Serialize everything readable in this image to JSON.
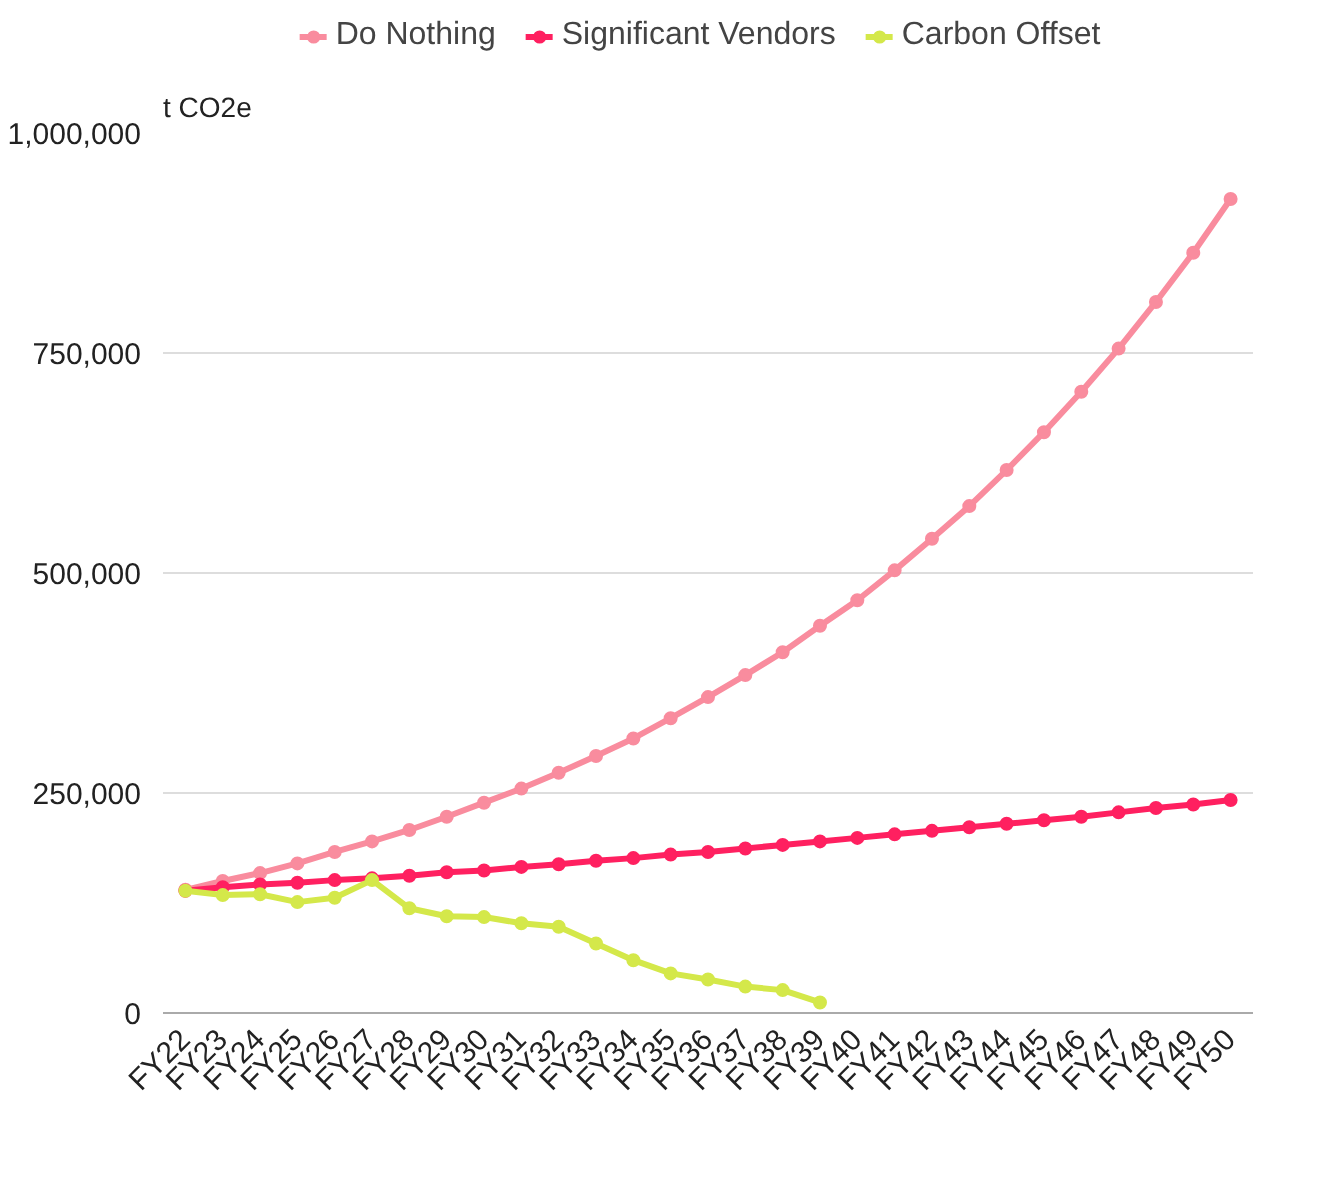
{
  "chart_data": {
    "type": "line",
    "ylabel": "t CO2e",
    "categories": [
      "FY22",
      "FY23",
      "FY24",
      "FY25",
      "FY26",
      "FY27",
      "FY28",
      "FY29",
      "FY30",
      "FY31",
      "FY32",
      "FY33",
      "FY34",
      "FY35",
      "FY36",
      "FY37",
      "FY38",
      "FY39",
      "FY40",
      "FY41",
      "FY42",
      "FY43",
      "FY44",
      "FY45",
      "FY46",
      "FY47",
      "FY48",
      "FY49",
      "FY50"
    ],
    "series": [
      {
        "name": "Do Nothing",
        "color": "#f98c9e",
        "values": [
          140000,
          150000,
          159000,
          170000,
          183000,
          195000,
          208000,
          223000,
          239000,
          255000,
          273000,
          292000,
          312000,
          335000,
          359000,
          384000,
          410000,
          440000,
          469000,
          503000,
          539000,
          576000,
          617000,
          660000,
          706000,
          755000,
          808000,
          864000,
          925000
        ]
      },
      {
        "name": "Significant Vendors",
        "color": "#ff2060",
        "values": [
          139000,
          143000,
          146000,
          148000,
          151000,
          153000,
          156000,
          160000,
          162000,
          166000,
          169000,
          173000,
          176000,
          180000,
          183000,
          187000,
          191000,
          195000,
          199000,
          203000,
          207000,
          211000,
          215000,
          219000,
          223000,
          228000,
          233000,
          237000,
          242000
        ]
      },
      {
        "name": "Carbon Offset",
        "color": "#d4e84a",
        "values": [
          139000,
          134000,
          135000,
          126000,
          131000,
          151000,
          119000,
          110000,
          109000,
          102000,
          98000,
          79000,
          60000,
          45000,
          38000,
          30000,
          26000,
          12000,
          null,
          null,
          null,
          null,
          null,
          null,
          null,
          null,
          null,
          null,
          null
        ]
      }
    ],
    "ylim": [
      0,
      1000000
    ],
    "yticks": [
      0,
      {
        "value": 250000,
        "label": "250,000"
      },
      {
        "value": 500000,
        "label": "500,000"
      },
      {
        "value": 750000,
        "label": "750,000"
      },
      {
        "value": 1000000,
        "label": "1,000,000"
      }
    ],
    "grid": "y",
    "legend": "top",
    "marker": "circle",
    "line_style": "solid"
  }
}
